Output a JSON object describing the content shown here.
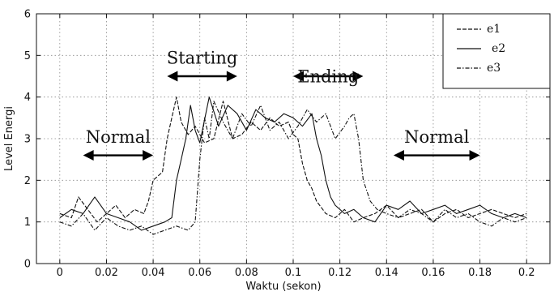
{
  "chart_data": {
    "type": "line",
    "title": "",
    "xlabel": "Waktu (sekon)",
    "ylabel": "Level Energi",
    "xlim": [
      -0.01,
      0.21
    ],
    "ylim": [
      0,
      6
    ],
    "xticks": [
      "0",
      "0.02",
      "0.04",
      "0.06",
      "0.08",
      "0.1",
      "0.12",
      "0.14",
      "0.16",
      "0.18",
      "0.2"
    ],
    "yticks": [
      "0",
      "1",
      "2",
      "3",
      "4",
      "5",
      "6"
    ],
    "grid": true,
    "legend_position": "top-right",
    "series": [
      {
        "name": "e1",
        "style": "dashed",
        "x": [
          0,
          0.005,
          0.008,
          0.012,
          0.016,
          0.02,
          0.024,
          0.028,
          0.032,
          0.036,
          0.038,
          0.04,
          0.042,
          0.044,
          0.046,
          0.048,
          0.05,
          0.052,
          0.055,
          0.058,
          0.062,
          0.066,
          0.07,
          0.074,
          0.078,
          0.082,
          0.086,
          0.09,
          0.094,
          0.098,
          0.1,
          0.102,
          0.104,
          0.106,
          0.108,
          0.11,
          0.114,
          0.118,
          0.122,
          0.126,
          0.13,
          0.135,
          0.14,
          0.145,
          0.15,
          0.155,
          0.16,
          0.165,
          0.17,
          0.175,
          0.18,
          0.185,
          0.19,
          0.195,
          0.2
        ],
        "y": [
          1.2,
          1.1,
          1.6,
          1.3,
          1.0,
          1.2,
          1.4,
          1.1,
          1.3,
          1.2,
          1.5,
          2.0,
          2.1,
          2.2,
          3.0,
          3.5,
          4.0,
          3.4,
          3.1,
          3.3,
          2.9,
          3.0,
          3.9,
          3.0,
          3.1,
          3.4,
          3.2,
          3.5,
          3.3,
          3.4,
          3.1,
          3.0,
          2.4,
          2.0,
          1.8,
          1.5,
          1.2,
          1.1,
          1.3,
          1.0,
          1.1,
          1.2,
          1.4,
          1.1,
          1.2,
          1.3,
          1.0,
          1.2,
          1.3,
          1.1,
          1.2,
          1.3,
          1.2,
          1.1,
          1.2
        ]
      },
      {
        "name": "e2",
        "style": "solid",
        "x": [
          0,
          0.005,
          0.01,
          0.015,
          0.02,
          0.025,
          0.03,
          0.035,
          0.04,
          0.045,
          0.048,
          0.05,
          0.052,
          0.054,
          0.056,
          0.058,
          0.06,
          0.064,
          0.068,
          0.072,
          0.076,
          0.08,
          0.084,
          0.088,
          0.092,
          0.096,
          0.1,
          0.104,
          0.108,
          0.11,
          0.112,
          0.114,
          0.116,
          0.118,
          0.122,
          0.126,
          0.13,
          0.135,
          0.14,
          0.145,
          0.15,
          0.155,
          0.16,
          0.165,
          0.17,
          0.175,
          0.18,
          0.185,
          0.19,
          0.195,
          0.2
        ],
        "y": [
          1.1,
          1.3,
          1.2,
          1.6,
          1.2,
          1.1,
          1.0,
          0.8,
          0.9,
          1.0,
          1.1,
          2.0,
          2.5,
          3.0,
          3.8,
          3.2,
          2.9,
          4.0,
          3.3,
          3.8,
          3.6,
          3.2,
          3.7,
          3.5,
          3.4,
          3.6,
          3.5,
          3.3,
          3.6,
          3.0,
          2.6,
          2.0,
          1.6,
          1.4,
          1.2,
          1.3,
          1.1,
          1.0,
          1.4,
          1.3,
          1.5,
          1.2,
          1.3,
          1.4,
          1.2,
          1.3,
          1.4,
          1.2,
          1.1,
          1.2,
          1.1
        ]
      },
      {
        "name": "e3",
        "style": "dash-dot",
        "x": [
          0,
          0.005,
          0.01,
          0.015,
          0.02,
          0.025,
          0.03,
          0.035,
          0.04,
          0.045,
          0.05,
          0.055,
          0.058,
          0.06,
          0.062,
          0.064,
          0.066,
          0.07,
          0.074,
          0.078,
          0.082,
          0.086,
          0.09,
          0.094,
          0.098,
          0.102,
          0.106,
          0.11,
          0.114,
          0.118,
          0.122,
          0.124,
          0.126,
          0.128,
          0.13,
          0.133,
          0.136,
          0.14,
          0.145,
          0.15,
          0.155,
          0.16,
          0.165,
          0.17,
          0.175,
          0.18,
          0.185,
          0.19,
          0.195,
          0.2
        ],
        "y": [
          1.0,
          0.9,
          1.2,
          0.8,
          1.1,
          0.9,
          0.8,
          0.9,
          0.7,
          0.8,
          0.9,
          0.8,
          1.0,
          2.5,
          3.5,
          3.0,
          3.9,
          3.4,
          3.0,
          3.6,
          3.3,
          3.8,
          3.2,
          3.4,
          3.0,
          3.3,
          3.7,
          3.4,
          3.6,
          3.0,
          3.3,
          3.5,
          3.6,
          3.0,
          2.0,
          1.5,
          1.3,
          1.2,
          1.1,
          1.3,
          1.2,
          1.0,
          1.3,
          1.1,
          1.2,
          1.0,
          0.9,
          1.1,
          1.0,
          1.1
        ]
      }
    ],
    "annotations": [
      {
        "text": "Normal",
        "x_from": 0.01,
        "x_to": 0.04,
        "y": 2.6,
        "label_y": 2.9
      },
      {
        "text": "Starting",
        "x_from": 0.046,
        "x_to": 0.076,
        "y": 4.5,
        "label_y": 4.8
      },
      {
        "text": "Ending",
        "x_from": 0.1,
        "x_to": 0.13,
        "y": 4.5,
        "label_y": 4.35
      },
      {
        "text": "Normal",
        "x_from": 0.143,
        "x_to": 0.18,
        "y": 2.6,
        "label_y": 2.9
      }
    ]
  }
}
